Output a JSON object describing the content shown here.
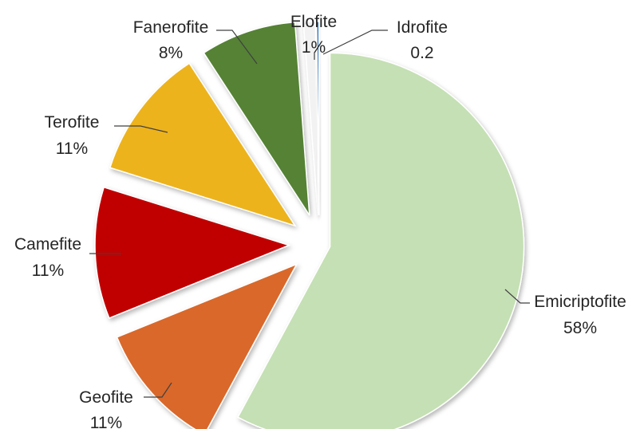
{
  "chart_data": {
    "type": "pie",
    "title": "",
    "slices": [
      {
        "name": "Emicriptofite",
        "value": 58,
        "label": "58%",
        "color": "#c5e0b4"
      },
      {
        "name": "Geofite",
        "value": 11,
        "label": "11%",
        "color": "#d9682a"
      },
      {
        "name": "Camefite",
        "value": 11,
        "label": "11%",
        "color": "#c00000"
      },
      {
        "name": "Terofite",
        "value": 11,
        "label": "11%",
        "color": "#edb31a"
      },
      {
        "name": "Fanerofite",
        "value": 8,
        "label": "8%",
        "color": "#548235"
      },
      {
        "name": "Elofite",
        "value": 1,
        "label": "1%",
        "color": "#f2f2f2"
      },
      {
        "name": "Idrofite",
        "value": 0.2,
        "label": "0.2",
        "color": "#2e75b6"
      }
    ],
    "exploded": true,
    "legend": "none",
    "data_labels": "category name and value, outside with leader lines"
  }
}
